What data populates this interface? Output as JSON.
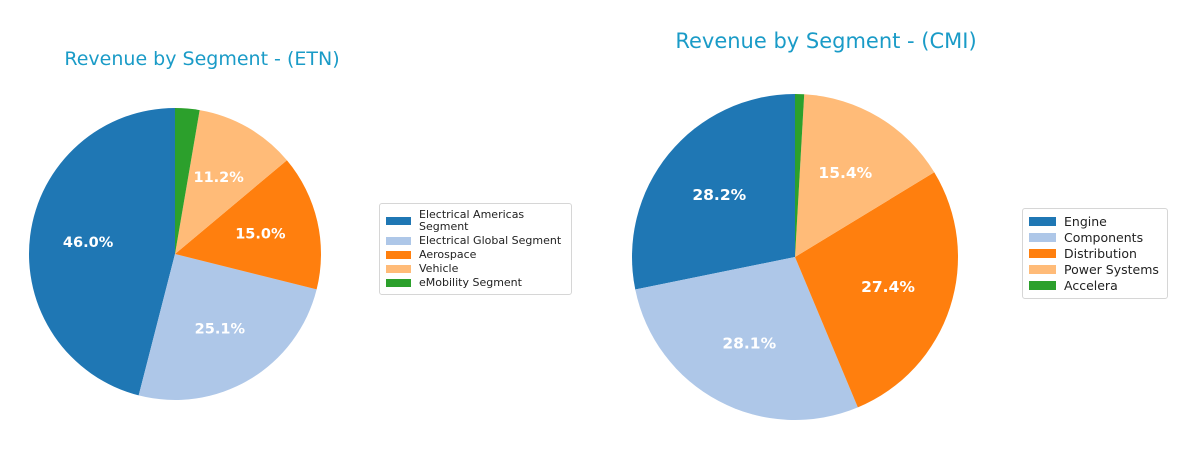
{
  "chart_data": [
    {
      "type": "pie",
      "title": "Revenue by Segment - (ETN)",
      "legend_position": "right",
      "slices": [
        {
          "label": "Electrical Americas Segment",
          "value": 46.0,
          "display": "46.0%",
          "color": "#1f77b4"
        },
        {
          "label": "Electrical Global Segment",
          "value": 25.1,
          "display": "25.1%",
          "color": "#aec7e8"
        },
        {
          "label": "Aerospace",
          "value": 15.0,
          "display": "15.0%",
          "color": "#ff7f0e"
        },
        {
          "label": "Vehicle",
          "value": 11.2,
          "display": "11.2%",
          "color": "#ffbb78"
        },
        {
          "label": "eMobility Segment",
          "value": 2.7,
          "display": "",
          "color": "#2ca02c"
        }
      ]
    },
    {
      "type": "pie",
      "title": "Revenue by Segment - (CMI)",
      "legend_position": "right",
      "slices": [
        {
          "label": "Engine",
          "value": 28.2,
          "display": "28.2%",
          "color": "#1f77b4"
        },
        {
          "label": "Components",
          "value": 28.1,
          "display": "28.1%",
          "color": "#aec7e8"
        },
        {
          "label": "Distribution",
          "value": 27.4,
          "display": "27.4%",
          "color": "#ff7f0e"
        },
        {
          "label": "Power Systems",
          "value": 15.4,
          "display": "15.4%",
          "color": "#ffbb78"
        },
        {
          "label": "Accelera",
          "value": 0.9,
          "display": "",
          "color": "#2ca02c"
        }
      ]
    }
  ]
}
